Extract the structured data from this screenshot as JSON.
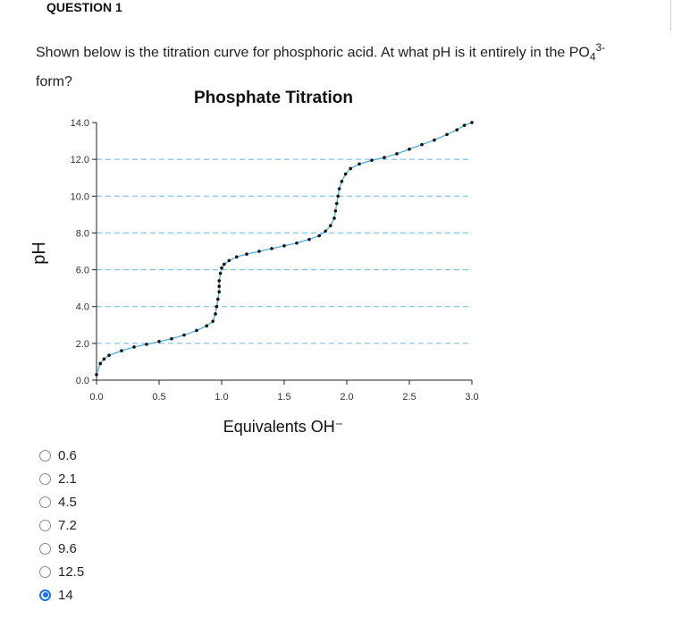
{
  "question": {
    "header": "QUESTION 1",
    "text_main": "Shown below is the titration curve for phosphoric acid. At what pH is it entirely in the PO",
    "text_sub": "4",
    "text_sup": "3-",
    "text_tail": "form?"
  },
  "options": [
    {
      "label": "0.6",
      "checked": false
    },
    {
      "label": "2.1",
      "checked": false
    },
    {
      "label": "4.5",
      "checked": false
    },
    {
      "label": "7.2",
      "checked": false
    },
    {
      "label": "9.6",
      "checked": false
    },
    {
      "label": "12.5",
      "checked": false
    },
    {
      "label": "14",
      "checked": true
    }
  ],
  "chart_data": {
    "type": "scatter",
    "title": "Phosphate Titration",
    "xlabel": "Equivalents OH⁻",
    "ylabel": "pH",
    "xlim": [
      0,
      3
    ],
    "ylim": [
      0,
      14
    ],
    "xticks": [
      "0.0",
      "0.5",
      "1.0",
      "1.5",
      "2.0",
      "2.5",
      "3.0"
    ],
    "yticks": [
      "0.0",
      "2.0",
      "4.0",
      "6.0",
      "8.0",
      "10.0",
      "12.0",
      "14.0"
    ],
    "grid": "dashed horizontal",
    "series": [
      {
        "points": [
          [
            0.0,
            0.3
          ],
          [
            0.03,
            0.9
          ],
          [
            0.06,
            1.15
          ],
          [
            0.1,
            1.35
          ],
          [
            0.2,
            1.6
          ],
          [
            0.3,
            1.8
          ],
          [
            0.4,
            1.95
          ],
          [
            0.5,
            2.1
          ],
          [
            0.6,
            2.25
          ],
          [
            0.7,
            2.45
          ],
          [
            0.8,
            2.7
          ],
          [
            0.88,
            2.95
          ],
          [
            0.93,
            3.2
          ],
          [
            0.95,
            3.6
          ],
          [
            0.96,
            4.0
          ],
          [
            0.97,
            4.4
          ],
          [
            0.98,
            4.8
          ],
          [
            0.98,
            5.1
          ],
          [
            0.98,
            5.4
          ],
          [
            0.99,
            5.8
          ],
          [
            1.0,
            6.1
          ],
          [
            1.02,
            6.3
          ],
          [
            1.06,
            6.5
          ],
          [
            1.12,
            6.7
          ],
          [
            1.2,
            6.85
          ],
          [
            1.3,
            7.0
          ],
          [
            1.4,
            7.15
          ],
          [
            1.5,
            7.3
          ],
          [
            1.6,
            7.45
          ],
          [
            1.7,
            7.65
          ],
          [
            1.78,
            7.85
          ],
          [
            1.83,
            8.1
          ],
          [
            1.87,
            8.4
          ],
          [
            1.9,
            8.8
          ],
          [
            1.91,
            9.2
          ],
          [
            1.92,
            9.6
          ],
          [
            1.93,
            10.0
          ],
          [
            1.94,
            10.4
          ],
          [
            1.96,
            10.8
          ],
          [
            1.99,
            11.2
          ],
          [
            2.03,
            11.5
          ],
          [
            2.1,
            11.75
          ],
          [
            2.2,
            11.95
          ],
          [
            2.3,
            12.1
          ],
          [
            2.4,
            12.3
          ],
          [
            2.5,
            12.55
          ],
          [
            2.6,
            12.8
          ],
          [
            2.7,
            13.05
          ],
          [
            2.8,
            13.35
          ],
          [
            2.88,
            13.6
          ],
          [
            2.94,
            13.85
          ],
          [
            3.0,
            14.0
          ]
        ]
      }
    ]
  }
}
